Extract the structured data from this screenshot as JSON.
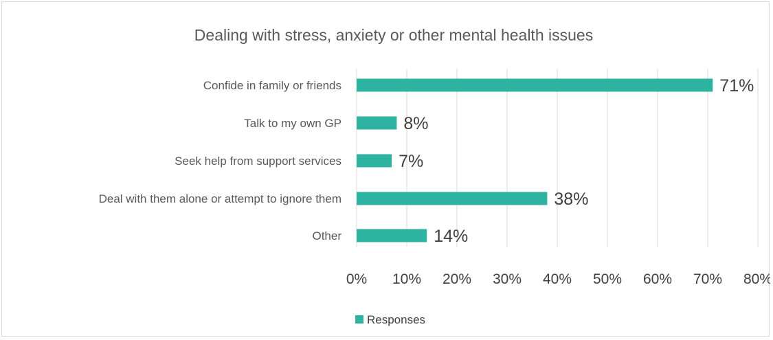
{
  "chart_data": {
    "type": "bar",
    "orientation": "horizontal",
    "title": "Dealing with stress, anxiety or other mental health issues",
    "categories": [
      "Confide in family or friends",
      "Talk to my own GP",
      "Seek help from support services",
      "Deal with them alone or attempt to ignore them",
      "Other"
    ],
    "series": [
      {
        "name": "Responses",
        "values": [
          71,
          8,
          7,
          38,
          14
        ],
        "data_labels": [
          "71%",
          "8%",
          "7%",
          "38%",
          "14%"
        ],
        "color": "#2db3a0"
      }
    ],
    "xlim": [
      0,
      80
    ],
    "x_ticks": [
      0,
      10,
      20,
      30,
      40,
      50,
      60,
      70,
      80
    ],
    "x_tick_labels": [
      "0%",
      "10%",
      "20%",
      "30%",
      "40%",
      "50%",
      "60%",
      "70%",
      "80%"
    ],
    "grid": true,
    "gridline_color": "#d9d9d9",
    "legend_position": "bottom"
  }
}
